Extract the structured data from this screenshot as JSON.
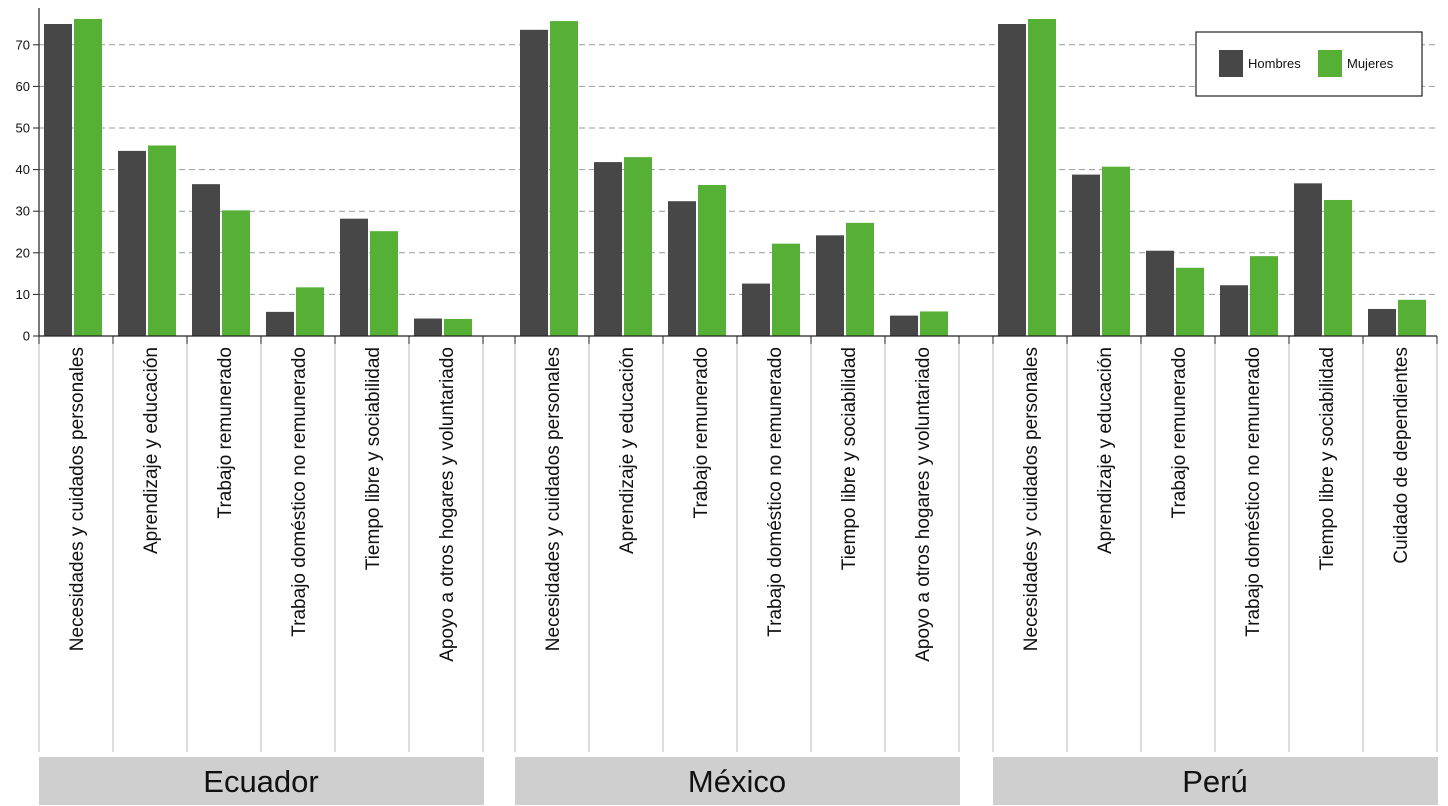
{
  "chart_data": {
    "type": "bar",
    "yticks": [
      0,
      10,
      20,
      30,
      40,
      50,
      60,
      70
    ],
    "ylim": [
      0,
      78
    ],
    "grid": true,
    "legend_position": "top-right",
    "colors": {
      "Hombres": "#474747",
      "Mujeres": "#55b035"
    },
    "legend": [
      "Hombres",
      "Mujeres"
    ],
    "panels": [
      {
        "name": "Ecuador",
        "categories": [
          "Necesidades y cuidados personales",
          "Aprendizaje y educación",
          "Trabajo remunerado",
          "Trabajo doméstico no remunerado",
          "Tiempo libre y sociabilidad",
          "Apoyo a otros hogares y voluntariado"
        ],
        "series": [
          {
            "name": "Hombres",
            "values": [
              75,
              44.5,
              36.5,
              5.8,
              28.2,
              4.2
            ]
          },
          {
            "name": "Mujeres",
            "values": [
              76.2,
              45.8,
              30.2,
              11.7,
              25.2,
              4.1
            ]
          }
        ]
      },
      {
        "name": "México",
        "categories": [
          "Necesidades y cuidados personales",
          "Aprendizaje y educación",
          "Trabajo remunerado",
          "Trabajo doméstico no remunerado",
          "Tiempo libre y sociabilidad",
          "Apoyo a otros hogares y voluntariado"
        ],
        "series": [
          {
            "name": "Hombres",
            "values": [
              73.6,
              41.8,
              32.4,
              12.6,
              24.2,
              4.9
            ]
          },
          {
            "name": "Mujeres",
            "values": [
              75.7,
              43,
              36.3,
              22.2,
              27.2,
              5.9
            ]
          }
        ]
      },
      {
        "name": "Perú",
        "categories": [
          "Necesidades y cuidados personales",
          "Aprendizaje y educación",
          "Trabajo remunerado",
          "Trabajo doméstico no remunerado",
          "Tiempo libre y sociabilidad",
          "Cuidado de dependientes"
        ],
        "series": [
          {
            "name": "Hombres",
            "values": [
              75,
              38.8,
              20.5,
              12.2,
              36.7,
              6.5
            ]
          },
          {
            "name": "Mujeres",
            "values": [
              76.2,
              40.7,
              16.4,
              19.2,
              32.7,
              8.7
            ]
          }
        ]
      }
    ]
  }
}
